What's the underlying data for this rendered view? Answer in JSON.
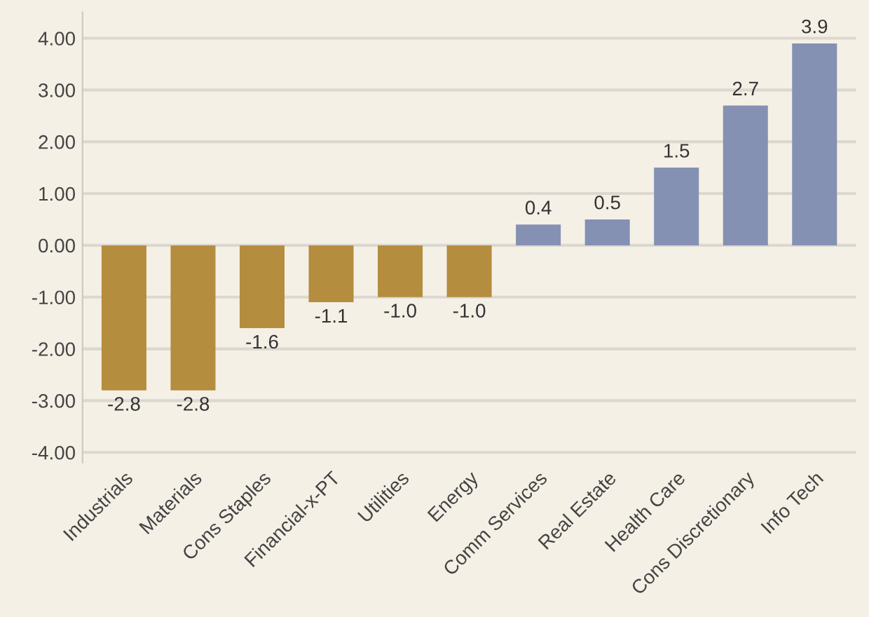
{
  "chart_data": {
    "type": "bar",
    "categories": [
      "Industrials",
      "Materials",
      "Cons Staples",
      "Financial-x-PT",
      "Utilities",
      "Energy",
      "Comm Services",
      "Real Estate",
      "Health Care",
      "Cons Discretionary",
      "Info Tech"
    ],
    "values": [
      -2.8,
      -2.8,
      -1.6,
      -1.1,
      -1.0,
      -1.0,
      0.4,
      0.5,
      1.5,
      2.7,
      3.9
    ],
    "colors": [
      "#b48d3e",
      "#b48d3e",
      "#b48d3e",
      "#b48d3e",
      "#b48d3e",
      "#b48d3e",
      "#8591b3",
      "#8591b3",
      "#8591b3",
      "#8591b3",
      "#8591b3"
    ],
    "value_labels": [
      "-2.8",
      "-2.8",
      "-1.6",
      "-1.1",
      "-1.0",
      "-1.0",
      "0.4",
      "0.5",
      "1.5",
      "2.7",
      "3.9"
    ],
    "ylim": [
      -4.2,
      4.5
    ],
    "yticks": [
      {
        "value": -4,
        "label": "-4.00"
      },
      {
        "value": -3,
        "label": "-3.00"
      },
      {
        "value": -2,
        "label": "-2.00"
      },
      {
        "value": -1,
        "label": "-1.00"
      },
      {
        "value": 0,
        "label": "0.00"
      },
      {
        "value": 1,
        "label": "1.00"
      },
      {
        "value": 2,
        "label": "2.00"
      },
      {
        "value": 3,
        "label": "3.00"
      },
      {
        "value": 4,
        "label": "4.00"
      }
    ],
    "grid": "y"
  }
}
